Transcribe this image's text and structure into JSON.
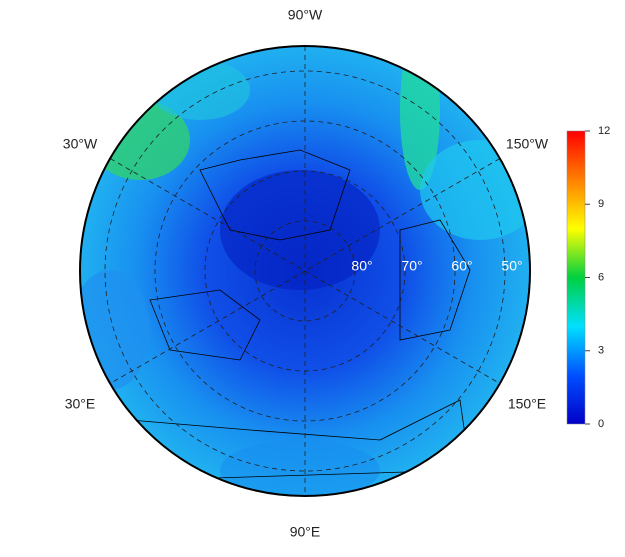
{
  "map": {
    "meridian_labels": {
      "top": "90°W",
      "upper_left": "30°W",
      "upper_right": "150°W",
      "lower_left": "30°E",
      "lower_right": "150°E",
      "bottom": "90°E"
    },
    "latitude_labels": [
      "80°",
      "70°",
      "60°",
      "50°"
    ]
  },
  "colorbar": {
    "lim": [
      0,
      12
    ],
    "ticks": [
      0,
      3,
      6,
      9,
      12
    ],
    "colors": [
      "#0000c8",
      "#0050ff",
      "#00e0ff",
      "#00d040",
      "#ffff00",
      "#ff8000",
      "#ff0000"
    ]
  }
}
